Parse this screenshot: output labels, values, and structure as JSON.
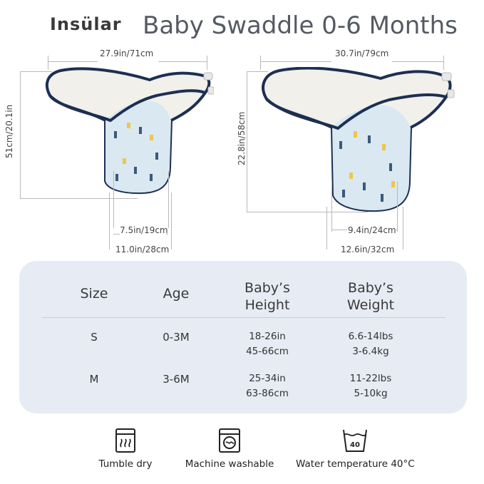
{
  "header": {
    "brand": "Insülar",
    "title": "Baby Swaddle 0-6 Months"
  },
  "sizes": {
    "small": {
      "width": "27.9in/71cm",
      "height": "51cm/20.1in",
      "inner_width": "7.5in/19cm",
      "bottom_width": "11.0in/28cm"
    },
    "medium": {
      "width": "30.7in/79cm",
      "height": "22.8in/58cm",
      "inner_width": "9.4in/24cm",
      "bottom_width": "12.6in/32cm"
    }
  },
  "table": {
    "headers": [
      "Size",
      "Age",
      "Baby’s\nHeight",
      "Baby’s\nWeight"
    ],
    "rows": [
      {
        "size": "S",
        "age": "0-3M",
        "height": "18-26in\n45-66cm",
        "weight": "6.6-14lbs\n3-6.4kg"
      },
      {
        "size": "M",
        "age": "3-6M",
        "height": "25-34in\n63-86cm",
        "weight": "11-22lbs\n5-10kg"
      }
    ]
  },
  "care": [
    {
      "icon": "tumble-dry-icon",
      "label": "Tumble dry"
    },
    {
      "icon": "machine-washable-icon",
      "label": "Machine washable"
    },
    {
      "icon": "water-temperature-icon",
      "label": "Water temperature 40°C",
      "temp": "40"
    }
  ],
  "colors": {
    "trim": "#1d2f52",
    "fabric": "#f1f0ea",
    "pattern": "#d9e8f1",
    "panel": "#e6ebf4"
  }
}
